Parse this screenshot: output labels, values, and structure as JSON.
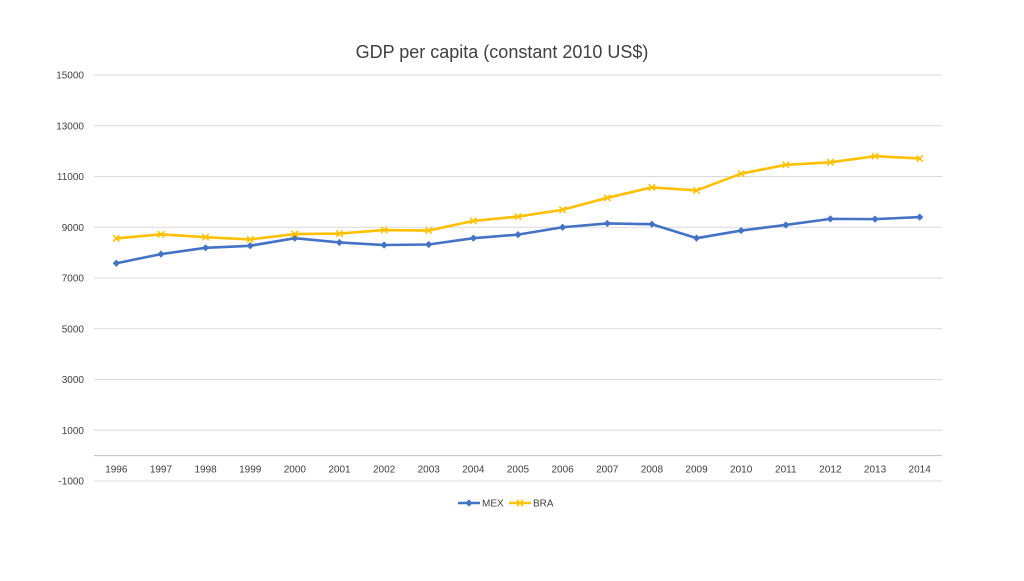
{
  "chart_data": {
    "type": "line",
    "title": "GDP per capita (constant 2010 US$)",
    "xlabel": "",
    "ylabel": "",
    "categories": [
      "1996",
      "1997",
      "1998",
      "1999",
      "2000",
      "2001",
      "2002",
      "2003",
      "2004",
      "2005",
      "2006",
      "2007",
      "2008",
      "2009",
      "2010",
      "2011",
      "2012",
      "2013",
      "2014"
    ],
    "ylim": [
      -1000,
      15000
    ],
    "yticks": [
      15000,
      13000,
      11000,
      9000,
      7000,
      5000,
      3000,
      1000,
      -1000
    ],
    "grid": true,
    "legend_position": "bottom",
    "series": [
      {
        "name": "MEX",
        "color": "#4472C4",
        "marker": "diamond",
        "values": [
          7580,
          7940,
          8190,
          8270,
          8570,
          8400,
          8300,
          8320,
          8570,
          8710,
          9000,
          9150,
          9120,
          8570,
          8870,
          9090,
          9330,
          9320,
          9400
        ]
      },
      {
        "name": "BRA",
        "color": "#FFC000",
        "marker": "x",
        "values": [
          8560,
          8720,
          8610,
          8520,
          8730,
          8750,
          8890,
          8870,
          9250,
          9420,
          9690,
          10160,
          10570,
          10450,
          11110,
          11460,
          11560,
          11800,
          11710
        ]
      }
    ]
  }
}
